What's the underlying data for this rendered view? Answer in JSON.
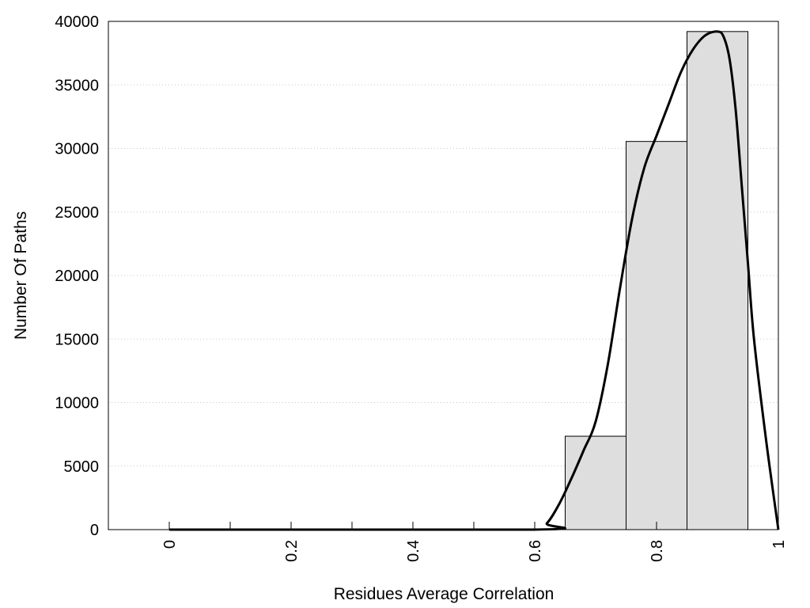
{
  "chart_data": {
    "type": "bar",
    "title": "",
    "xlabel": "Residues Average Correlation",
    "ylabel": "Number Of Paths",
    "xlim": [
      -0.1,
      1.0
    ],
    "ylim": [
      0,
      40000
    ],
    "x_ticks": [
      "0",
      "0.2",
      "0.4",
      "0.6",
      "0.8",
      "1"
    ],
    "x_tick_values": [
      0,
      0.2,
      0.4,
      0.6,
      0.8,
      1.0
    ],
    "x_minor_tick_values": [
      0.1,
      0.3,
      0.5
    ],
    "y_ticks": [
      "0",
      "5000",
      "10000",
      "15000",
      "20000",
      "25000",
      "30000",
      "35000",
      "40000"
    ],
    "y_tick_values": [
      0,
      5000,
      10000,
      15000,
      20000,
      25000,
      30000,
      35000,
      40000
    ],
    "grid": "horizontal dotted",
    "bins": [
      {
        "x0": 0.0,
        "x1": 0.1,
        "value": 0
      },
      {
        "x0": 0.1,
        "x1": 0.2,
        "value": 0
      },
      {
        "x0": 0.2,
        "x1": 0.3,
        "value": 0
      },
      {
        "x0": 0.3,
        "x1": 0.4,
        "value": 0
      },
      {
        "x0": 0.4,
        "x1": 0.5,
        "value": 0
      },
      {
        "x0": 0.5,
        "x1": 0.6,
        "value": 0
      },
      {
        "x0": 0.65,
        "x1": 0.75,
        "value": 7350
      },
      {
        "x0": 0.75,
        "x1": 0.85,
        "value": 30550
      },
      {
        "x0": 0.85,
        "x1": 0.95,
        "value": 39200
      }
    ],
    "density_curve": {
      "x": [
        0.0,
        0.6,
        0.62,
        0.64,
        0.66,
        0.68,
        0.7,
        0.72,
        0.74,
        0.76,
        0.78,
        0.8,
        0.82,
        0.84,
        0.86,
        0.88,
        0.9,
        0.91,
        0.92,
        0.93,
        0.94,
        0.95,
        0.96,
        0.98,
        1.0
      ],
      "y": [
        0,
        0,
        500,
        2000,
        4000,
        6200,
        8500,
        13000,
        19000,
        24500,
        28500,
        31000,
        33500,
        36000,
        37800,
        38900,
        39200,
        38800,
        37000,
        33000,
        27000,
        21000,
        15000,
        7000,
        0
      ]
    },
    "colors": {
      "bar_fill": "#dedede",
      "bar_stroke": "#000000",
      "curve": "#000000",
      "grid": "#c8c8c8"
    }
  }
}
